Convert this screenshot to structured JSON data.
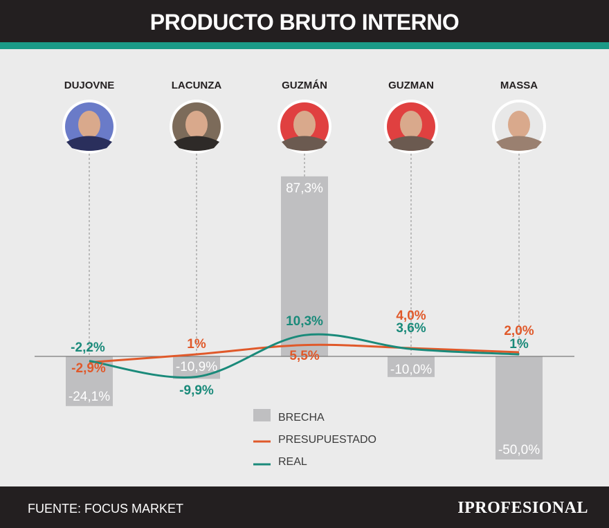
{
  "header": {
    "title": "PRODUCTO BRUTO INTERNO"
  },
  "footer": {
    "source": "FUENTE: FOCUS MARKET",
    "logo": "IPROFESIONAL"
  },
  "colors": {
    "brecha": "#bfbfc1",
    "presupuestado": "#e0592a",
    "real": "#1a8a7a",
    "accent": "#1a9a87"
  },
  "chart_data": {
    "type": "bar",
    "title": "PRODUCTO BRUTO INTERNO",
    "categories": [
      "DUJOVNE",
      "LACUNZA",
      "GUZMÁN",
      "GUZMAN",
      "MASSA"
    ],
    "series": [
      {
        "name": "BRECHA",
        "type": "bar",
        "values": [
          -24.1,
          -10.9,
          87.3,
          -10.0,
          -50.0
        ],
        "labels": [
          "-24,1%",
          "-10,9%",
          "87,3%",
          "-10,0%",
          "-50,0%"
        ]
      },
      {
        "name": "PRESUPUESTADO",
        "type": "line",
        "values": [
          -2.9,
          1,
          5.5,
          4.0,
          2.0
        ],
        "labels": [
          "-2,9%",
          "1%",
          "5,5%",
          "4,0%",
          "2,0%"
        ]
      },
      {
        "name": "REAL",
        "type": "line",
        "values": [
          -2.2,
          -9.9,
          10.3,
          3.6,
          1
        ],
        "labels": [
          "-2,2%",
          "-9,9%",
          "10,3%",
          "3,6%",
          "1%"
        ]
      }
    ],
    "legend": [
      "BRECHA",
      "PRESUPUESTADO",
      "REAL"
    ],
    "legend_position": "bottom-center",
    "source": "FUENTE: FOCUS MARKET"
  }
}
